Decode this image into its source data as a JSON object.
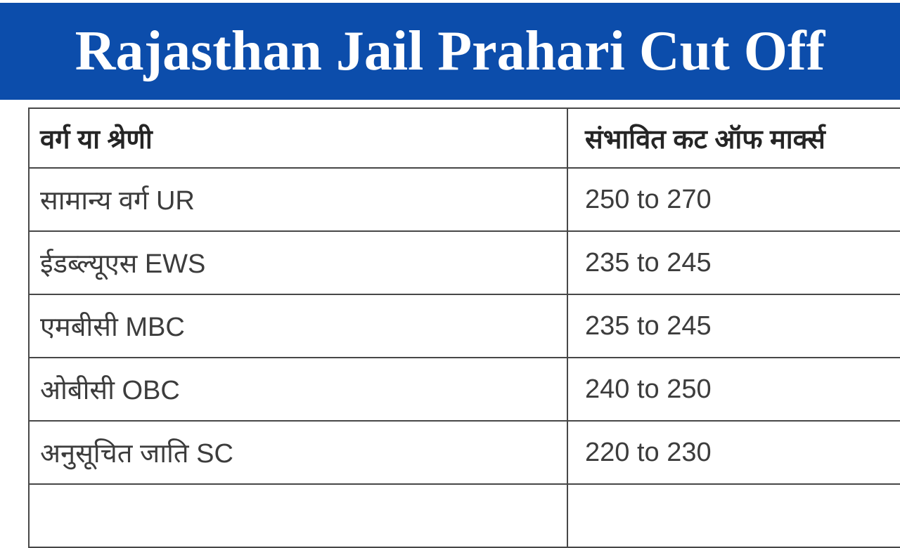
{
  "banner": {
    "title": "Rajasthan Jail Prahari Cut Off"
  },
  "colors": {
    "banner_bg": "#0c4dab",
    "banner_text": "#ffffff",
    "table_border": "#474747",
    "header_text": "#252525",
    "body_text": "#3c3c3c",
    "background": "#ffffff"
  },
  "table": {
    "columns": [
      {
        "label": "वर्ग या श्रेणी"
      },
      {
        "label": "संभावित कट ऑफ मार्क्स"
      }
    ],
    "rows": [
      {
        "category": "सामान्य वर्ग UR",
        "cutoff": "250 to 270"
      },
      {
        "category": "ईडब्ल्यूएस EWS",
        "cutoff": "235 to 245"
      },
      {
        "category": "एमबीसी MBC",
        "cutoff": "235 to 245"
      },
      {
        "category": "ओबीसी OBC",
        "cutoff": "240 to 250"
      },
      {
        "category": "अनुसूचित जाति SC",
        "cutoff": "220 to 230"
      },
      {
        "category": "",
        "cutoff": ""
      }
    ]
  }
}
